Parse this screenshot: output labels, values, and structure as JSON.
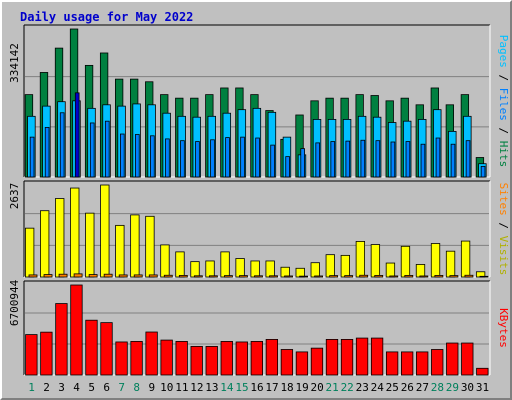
{
  "title": "Daily usage for May 2022",
  "colors": {
    "hits": "#008040",
    "files": "#0080ff",
    "pages": "#00c0ff",
    "visits": "#ffff00",
    "sites": "#ff8000",
    "kbytes": "#ff0000",
    "max_day": "#0000cc",
    "weekend": "#00805c"
  },
  "chart_data": [
    {
      "type": "bar",
      "title": "Hits / Files / Pages",
      "legend": [
        "Hits",
        "Files",
        "Pages"
      ],
      "ylabel_max": "334142",
      "ylim": [
        0,
        334142
      ],
      "categories": [
        "1",
        "2",
        "3",
        "4",
        "5",
        "6",
        "7",
        "8",
        "9",
        "10",
        "11",
        "12",
        "13",
        "14",
        "15",
        "16",
        "17",
        "18",
        "19",
        "20",
        "21",
        "22",
        "23",
        "24",
        "25",
        "26",
        "27",
        "28",
        "29",
        "30",
        "31"
      ],
      "series": [
        {
          "name": "Hits",
          "values": [
            186000,
            236000,
            291000,
            334142,
            252000,
            280000,
            221000,
            221000,
            215000,
            186000,
            178000,
            178000,
            186000,
            201000,
            201000,
            186000,
            150000,
            85000,
            140000,
            172000,
            178000,
            178000,
            186000,
            184000,
            172000,
            178000,
            163000,
            201000,
            163000,
            186000,
            44000
          ]
        },
        {
          "name": "Files",
          "values": [
            90000,
            112000,
            145000,
            190000,
            122000,
            126000,
            97000,
            96000,
            93000,
            86000,
            82000,
            80000,
            84000,
            89000,
            90000,
            88000,
            72000,
            46000,
            64000,
            77000,
            80000,
            81000,
            83000,
            82000,
            79000,
            80000,
            74000,
            88000,
            74000,
            82000,
            24000
          ]
        },
        {
          "name": "Pages",
          "values": [
            137000,
            160000,
            170000,
            172000,
            155000,
            163000,
            160000,
            165000,
            163000,
            144000,
            137000,
            135000,
            137000,
            144000,
            152000,
            155000,
            146000,
            90000,
            50000,
            130000,
            130000,
            130000,
            137000,
            135000,
            123000,
            126000,
            130000,
            152000,
            103000,
            137000,
            30000
          ]
        }
      ]
    },
    {
      "type": "bar",
      "title": "Visits / Sites",
      "legend": [
        "Visits",
        "Sites"
      ],
      "ylabel_max": "2637",
      "ylim": [
        0,
        2637
      ],
      "categories": [
        "1",
        "2",
        "3",
        "4",
        "5",
        "6",
        "7",
        "8",
        "9",
        "10",
        "11",
        "12",
        "13",
        "14",
        "15",
        "16",
        "17",
        "18",
        "19",
        "20",
        "21",
        "22",
        "23",
        "24",
        "25",
        "26",
        "27",
        "28",
        "29",
        "30",
        "31"
      ],
      "series": [
        {
          "name": "Visits",
          "values": [
            1400,
            1900,
            2250,
            2550,
            1830,
            2637,
            1480,
            1780,
            1740,
            920,
            720,
            440,
            460,
            720,
            530,
            460,
            460,
            280,
            250,
            410,
            640,
            620,
            1020,
            930,
            400,
            880,
            360,
            960,
            740,
            1030,
            150
          ]
        },
        {
          "name": "Sites",
          "values": [
            60,
            70,
            80,
            90,
            70,
            80,
            60,
            60,
            60,
            50,
            45,
            35,
            35,
            40,
            40,
            35,
            35,
            30,
            25,
            30,
            40,
            40,
            50,
            45,
            30,
            45,
            30,
            45,
            40,
            50,
            20
          ]
        }
      ]
    },
    {
      "type": "bar",
      "title": "KBytes",
      "legend": [
        "KBytes"
      ],
      "ylabel_max": "6700944",
      "ylim": [
        0,
        6700944
      ],
      "categories": [
        "1",
        "2",
        "3",
        "4",
        "5",
        "6",
        "7",
        "8",
        "9",
        "10",
        "11",
        "12",
        "13",
        "14",
        "15",
        "16",
        "17",
        "18",
        "19",
        "20",
        "21",
        "22",
        "23",
        "24",
        "25",
        "26",
        "27",
        "28",
        "29",
        "30",
        "31"
      ],
      "series": [
        {
          "name": "KBytes",
          "values": [
            3010000,
            3190000,
            5320000,
            6700944,
            4080000,
            3900000,
            2460000,
            2500000,
            3200000,
            2600000,
            2500000,
            2130000,
            2130000,
            2500000,
            2460000,
            2500000,
            2650000,
            1900000,
            1720000,
            2000000,
            2650000,
            2650000,
            2750000,
            2750000,
            1720000,
            1720000,
            1720000,
            1900000,
            2380000,
            2380000,
            500000
          ]
        }
      ]
    }
  ],
  "axis": {
    "day_labels": [
      "1",
      "2",
      "3",
      "4",
      "5",
      "6",
      "7",
      "8",
      "9",
      "10",
      "11",
      "12",
      "13",
      "14",
      "15",
      "16",
      "17",
      "18",
      "19",
      "20",
      "21",
      "22",
      "23",
      "24",
      "25",
      "26",
      "27",
      "28",
      "29",
      "30",
      "31"
    ],
    "weekend_days": [
      1,
      7,
      8,
      14,
      15,
      21,
      22,
      28,
      29
    ]
  },
  "side_labels": {
    "hits_pages": {
      "pages": "Pages",
      "sep1": " / ",
      "files": "Files",
      "sep2": " / ",
      "hits": "Hits"
    },
    "visits_sites": {
      "sites": "Sites",
      "sep": " / ",
      "visits": "Visits"
    },
    "kbytes": "KBytes"
  }
}
